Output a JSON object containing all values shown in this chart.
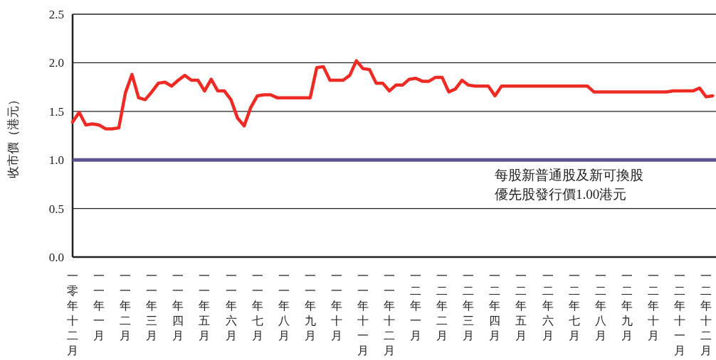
{
  "chart_data": {
    "type": "line",
    "ylabel": "收市價（港元）",
    "ylim": [
      0,
      2.5
    ],
    "yticks": [
      {
        "value": 0,
        "label": "0.0"
      },
      {
        "value": 0.5,
        "label": "0.5"
      },
      {
        "value": 1,
        "label": "1.0"
      },
      {
        "value": 1.5,
        "label": "1.5"
      },
      {
        "value": 2,
        "label": "2.0"
      },
      {
        "value": 2.5,
        "label": "2.5"
      }
    ],
    "categories": [
      "一零年十二月",
      null,
      null,
      null,
      "一一年一月",
      null,
      null,
      null,
      "一一年二月",
      null,
      null,
      null,
      "一一年三月",
      null,
      null,
      null,
      "一一年四月",
      null,
      null,
      null,
      "一一年五月",
      null,
      null,
      null,
      "一一年六月",
      null,
      null,
      null,
      "一一年七月",
      null,
      null,
      null,
      "一一年八月",
      null,
      null,
      null,
      "一一年九月",
      null,
      null,
      null,
      "一一年十月",
      null,
      null,
      null,
      "一一年十一月",
      null,
      null,
      null,
      "一一年十二月",
      null,
      null,
      null,
      "一二年一月",
      null,
      null,
      null,
      "一二年二月",
      null,
      null,
      null,
      "一二年三月",
      null,
      null,
      null,
      "一二年四月",
      null,
      null,
      null,
      "一二年五月",
      null,
      null,
      null,
      "一二年六月",
      null,
      null,
      null,
      "一二年七月",
      null,
      null,
      null,
      "一二年八月",
      null,
      null,
      null,
      "一二年九月",
      null,
      null,
      null,
      "一二年十月",
      null,
      null,
      null,
      "一二年十一月",
      null,
      null,
      null,
      "一二年十二月",
      null
    ],
    "grid": "y",
    "marker": "none",
    "line_style": "solid",
    "ref_lines": [
      {
        "axis": "y",
        "value": 1.0,
        "label": "每股新普通股及新可換股優先股發行價1.00港元",
        "color": "#5c5390"
      }
    ],
    "series": [
      {
        "color": "#ee2a24",
        "values": [
          1.39,
          1.49,
          1.36,
          1.37,
          1.36,
          1.32,
          1.32,
          1.33,
          1.69,
          1.88,
          1.64,
          1.62,
          1.7,
          1.79,
          1.8,
          1.76,
          1.82,
          1.87,
          1.82,
          1.82,
          1.71,
          1.83,
          1.71,
          1.71,
          1.62,
          1.43,
          1.35,
          1.54,
          1.66,
          1.67,
          1.67,
          1.64,
          1.64,
          1.64,
          1.64,
          1.64,
          1.64,
          1.95,
          1.96,
          1.82,
          1.82,
          1.82,
          1.87,
          2.02,
          1.94,
          1.93,
          1.79,
          1.79,
          1.71,
          1.77,
          1.77,
          1.83,
          1.84,
          1.81,
          1.81,
          1.85,
          1.85,
          1.7,
          1.73,
          1.82,
          1.77,
          1.76,
          1.76,
          1.76,
          1.66,
          1.76,
          1.76,
          1.76,
          1.76,
          1.76,
          1.76,
          1.76,
          1.76,
          1.76,
          1.76,
          1.76,
          1.76,
          1.76,
          1.76,
          1.7,
          1.7,
          1.7,
          1.7,
          1.7,
          1.7,
          1.7,
          1.7,
          1.7,
          1.7,
          1.7,
          1.7,
          1.71,
          1.71,
          1.71,
          1.71,
          1.74,
          1.65,
          1.66
        ]
      }
    ]
  }
}
